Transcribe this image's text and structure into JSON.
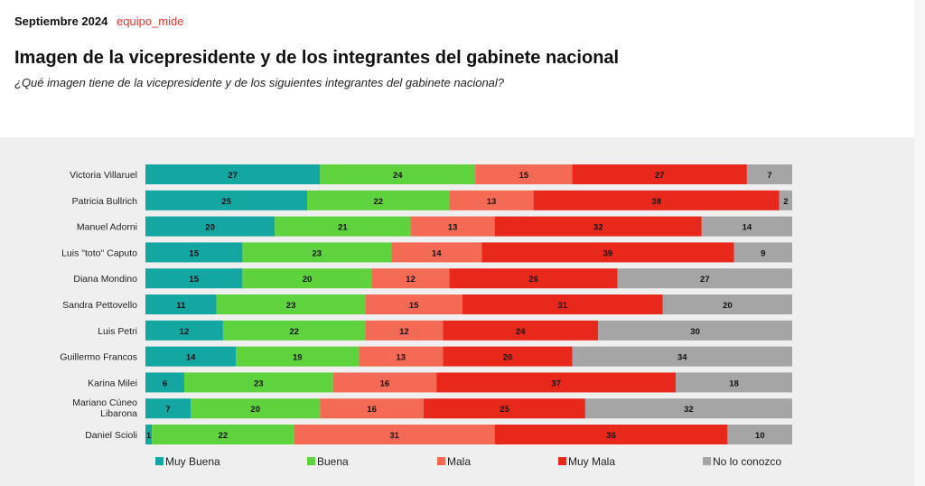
{
  "header": {
    "date": "Septiembre 2024",
    "brand": "equipo_mide",
    "title": "Imagen de la vicepresidente y de los integrantes del gabinete nacional",
    "subtitle": "¿Qué imagen tiene de la vicepresidente y de los siguientes integrantes del gabinete nacional?"
  },
  "chart_data": {
    "type": "bar",
    "orientation": "horizontal-stacked-100",
    "categories": [
      "Victoria Villaruel",
      "Patricia Bullrich",
      "Manuel Adorni",
      "Luis \"toto\" Caputo",
      "Diana Mondino",
      "Sandra Pettovello",
      "Luis Petri",
      "Guillermo Francos",
      "Karina Milei",
      "Mariano Cúneo Libarona",
      "Daniel Scioli"
    ],
    "series": [
      {
        "name": "Muy Buena",
        "color": "#14a6a1",
        "values": [
          27,
          25,
          20,
          15,
          15,
          11,
          12,
          14,
          6,
          7,
          1
        ]
      },
      {
        "name": "Buena",
        "color": "#5fd33d",
        "values": [
          24,
          22,
          21,
          23,
          20,
          23,
          22,
          19,
          23,
          20,
          22
        ]
      },
      {
        "name": "Mala",
        "color": "#f56a54",
        "values": [
          15,
          13,
          13,
          14,
          12,
          15,
          12,
          13,
          16,
          16,
          31
        ]
      },
      {
        "name": "Muy Mala",
        "color": "#e8281b",
        "values": [
          27,
          38,
          32,
          39,
          26,
          31,
          24,
          20,
          37,
          25,
          36
        ]
      },
      {
        "name": "No lo conozco",
        "color": "#a5a5a5",
        "values": [
          7,
          2,
          14,
          9,
          27,
          20,
          30,
          34,
          18,
          32,
          10
        ]
      }
    ],
    "legend_position": "bottom",
    "grid": false
  }
}
